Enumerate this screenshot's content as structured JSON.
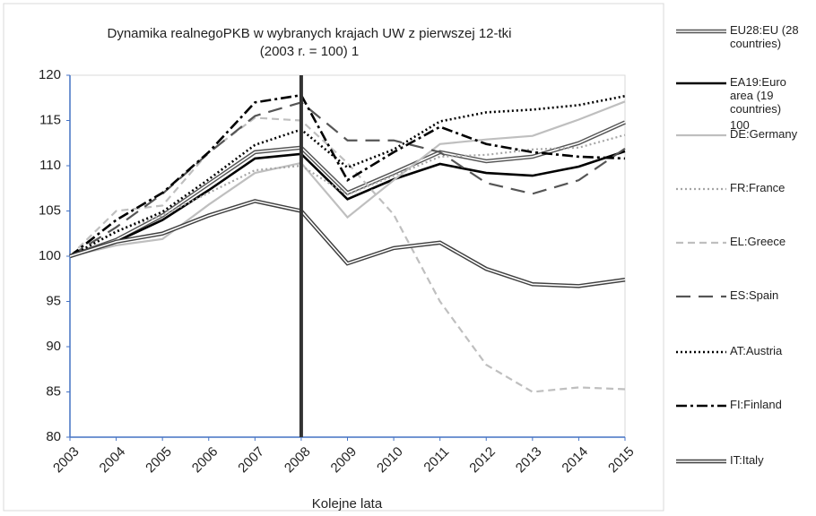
{
  "chart_data": {
    "type": "line",
    "title": "Dynamika realnegoPKB w wybranych krajach UW z pierwszej 12-tki",
    "subtitle": "(2003 r. = 100)   1",
    "x_label": "Kolejne lata",
    "annotations": [
      "100"
    ],
    "x": [
      2003,
      2004,
      2005,
      2006,
      2007,
      2008,
      2009,
      2010,
      2011,
      2012,
      2013,
      2014,
      2015
    ],
    "xlim": [
      2003,
      2015
    ],
    "xticks": [
      2003,
      2004,
      2005,
      2006,
      2007,
      2008,
      2009,
      2010,
      2011,
      2012,
      2013,
      2014,
      2015
    ],
    "ylim": [
      80,
      120
    ],
    "yticks": [
      80,
      85,
      90,
      95,
      100,
      105,
      110,
      115,
      120
    ],
    "vline": 2008,
    "grid": false,
    "legend": "right",
    "series": [
      {
        "name": "EU28:EU (28 countries)",
        "color": "#555555",
        "style": "double",
        "values": [
          100,
          101.8,
          104.5,
          108,
          111.5,
          112,
          107,
          109.2,
          111.5,
          110.5,
          111,
          112.5,
          114.8
        ]
      },
      {
        "name": "EA19:Euro area (19 countries)",
        "color": "#000000",
        "style": "solid",
        "values": [
          100,
          101.6,
          104,
          107.3,
          110.8,
          111.3,
          106.3,
          108.5,
          110.2,
          109.2,
          108.9,
          109.9,
          111.6
        ]
      },
      {
        "name": "DE:Germany",
        "color": "#bfbfbf",
        "style": "solid",
        "values": [
          100,
          101.2,
          101.9,
          105.7,
          109.2,
          110.3,
          104.3,
          108.4,
          112.4,
          112.9,
          113.3,
          115.1,
          117.1
        ]
      },
      {
        "name": "FR:France",
        "color": "#a6a6a6",
        "style": "dotted",
        "values": [
          100,
          102.8,
          104.5,
          107,
          109.5,
          110,
          106.8,
          108.9,
          111,
          111.2,
          111.8,
          112,
          113.4
        ]
      },
      {
        "name": "EL:Greece",
        "color": "#bfbfbf",
        "style": "dashed",
        "values": [
          100,
          105,
          105.6,
          111.5,
          115.3,
          115,
          110.3,
          104.6,
          95,
          88,
          85,
          85.5,
          85.3
        ]
      },
      {
        "name": "ES:Spain",
        "color": "#555555",
        "style": "longdash",
        "values": [
          100,
          103.2,
          106.9,
          111.4,
          115.5,
          117,
          112.8,
          112.8,
          111.5,
          108.1,
          106.9,
          108.4,
          111.9
        ]
      },
      {
        "name": "AT:Austria",
        "color": "#000000",
        "style": "dotted",
        "values": [
          100,
          102.7,
          104.9,
          108.5,
          112.3,
          114,
          109.8,
          111.8,
          114.9,
          115.9,
          116.2,
          116.7,
          117.7
        ]
      },
      {
        "name": "FI:Finland",
        "color": "#000000",
        "style": "dashdot",
        "values": [
          100,
          104,
          107,
          111.5,
          117,
          117.8,
          108.4,
          111.5,
          114.3,
          112.4,
          111.5,
          111,
          110.8
        ]
      },
      {
        "name": "IT:Italy",
        "color": "#404040",
        "style": "double",
        "values": [
          100,
          101.6,
          102.5,
          104.5,
          106.1,
          105,
          99.2,
          100.9,
          101.5,
          98.6,
          96.9,
          96.7,
          97.4
        ]
      }
    ]
  }
}
